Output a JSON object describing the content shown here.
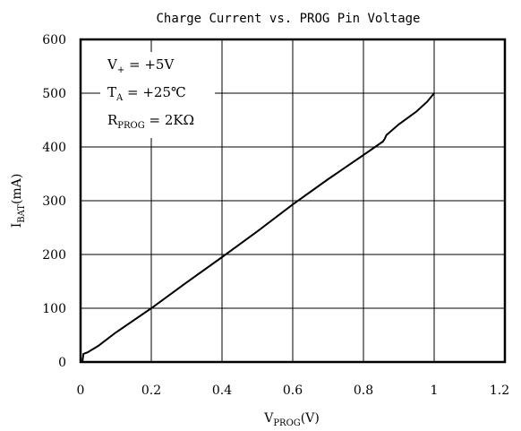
{
  "chart_data": {
    "type": "line",
    "title": "Charge Current vs. PROG Pin Voltage",
    "xlabel": {
      "main": "V",
      "sub": "PROG",
      "unit": "(V)"
    },
    "ylabel": {
      "main": "I",
      "sub": "BAT",
      "unit": "(mA)"
    },
    "xlim": [
      0,
      1.2
    ],
    "ylim": [
      0,
      600
    ],
    "x_ticks": [
      0,
      0.2,
      0.4,
      0.6,
      0.8,
      1,
      1.2
    ],
    "x_tick_labels": [
      "0",
      "0.2",
      "0.4",
      "0.6",
      "0.8",
      "1",
      "1.2"
    ],
    "y_ticks": [
      0,
      100,
      200,
      300,
      400,
      500,
      600
    ],
    "y_tick_labels": [
      "0",
      "100",
      "200",
      "300",
      "400",
      "500",
      "600"
    ],
    "grid": true,
    "annotations": [
      {
        "main": "V",
        "sub": "+",
        "rest": " = +5V"
      },
      {
        "main": "T",
        "sub": "A",
        "rest": " = +25℃"
      },
      {
        "main": "R",
        "sub": "PROG",
        "rest": " = 2KΩ"
      }
    ],
    "series": [
      {
        "x": [
          0.005,
          0.008,
          0.02,
          0.03,
          0.05,
          0.1,
          0.2,
          0.3,
          0.4,
          0.5,
          0.6,
          0.7,
          0.8,
          0.855,
          0.86,
          0.865,
          0.9,
          0.95,
          0.98,
          1.0
        ],
        "y": [
          0,
          15,
          18,
          22,
          30,
          55,
          100,
          148,
          195,
          243,
          293,
          340,
          385,
          410,
          415,
          422,
          442,
          466,
          484,
          500
        ]
      }
    ]
  }
}
